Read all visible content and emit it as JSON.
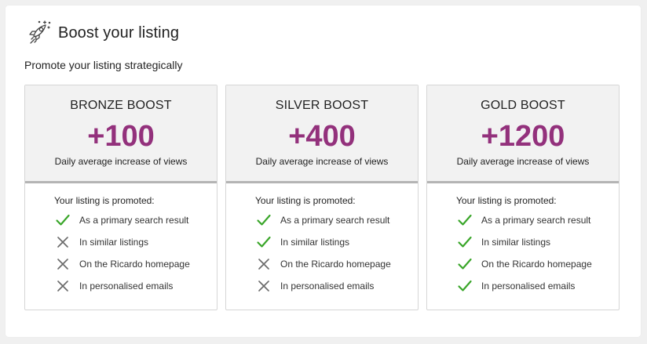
{
  "header": {
    "title": "Boost your listing",
    "icon": "rocket-icon"
  },
  "subtitle": "Promote your listing strategically",
  "colors": {
    "accent": "#93317c",
    "check": "#3aa62a",
    "cross": "#6b6b6b"
  },
  "tiers": [
    {
      "name": "BRONZE BOOST",
      "value": "+100",
      "caption": "Daily average increase of views",
      "features_title": "Your listing is promoted:",
      "features": [
        {
          "label": "As a primary search result",
          "included": true
        },
        {
          "label": "In similar listings",
          "included": false
        },
        {
          "label": "On the Ricardo homepage",
          "included": false
        },
        {
          "label": "In personalised emails",
          "included": false
        }
      ]
    },
    {
      "name": "SILVER BOOST",
      "value": "+400",
      "caption": "Daily average increase of views",
      "features_title": "Your listing is promoted:",
      "features": [
        {
          "label": "As a primary search result",
          "included": true
        },
        {
          "label": "In similar listings",
          "included": true
        },
        {
          "label": "On the Ricardo homepage",
          "included": false
        },
        {
          "label": "In personalised emails",
          "included": false
        }
      ]
    },
    {
      "name": "GOLD BOOST",
      "value": "+1200",
      "caption": "Daily average increase of views",
      "features_title": "Your listing is promoted:",
      "features": [
        {
          "label": "As a primary search result",
          "included": true
        },
        {
          "label": "In similar listings",
          "included": true
        },
        {
          "label": "On the Ricardo homepage",
          "included": true
        },
        {
          "label": "In personalised emails",
          "included": true
        }
      ]
    }
  ]
}
